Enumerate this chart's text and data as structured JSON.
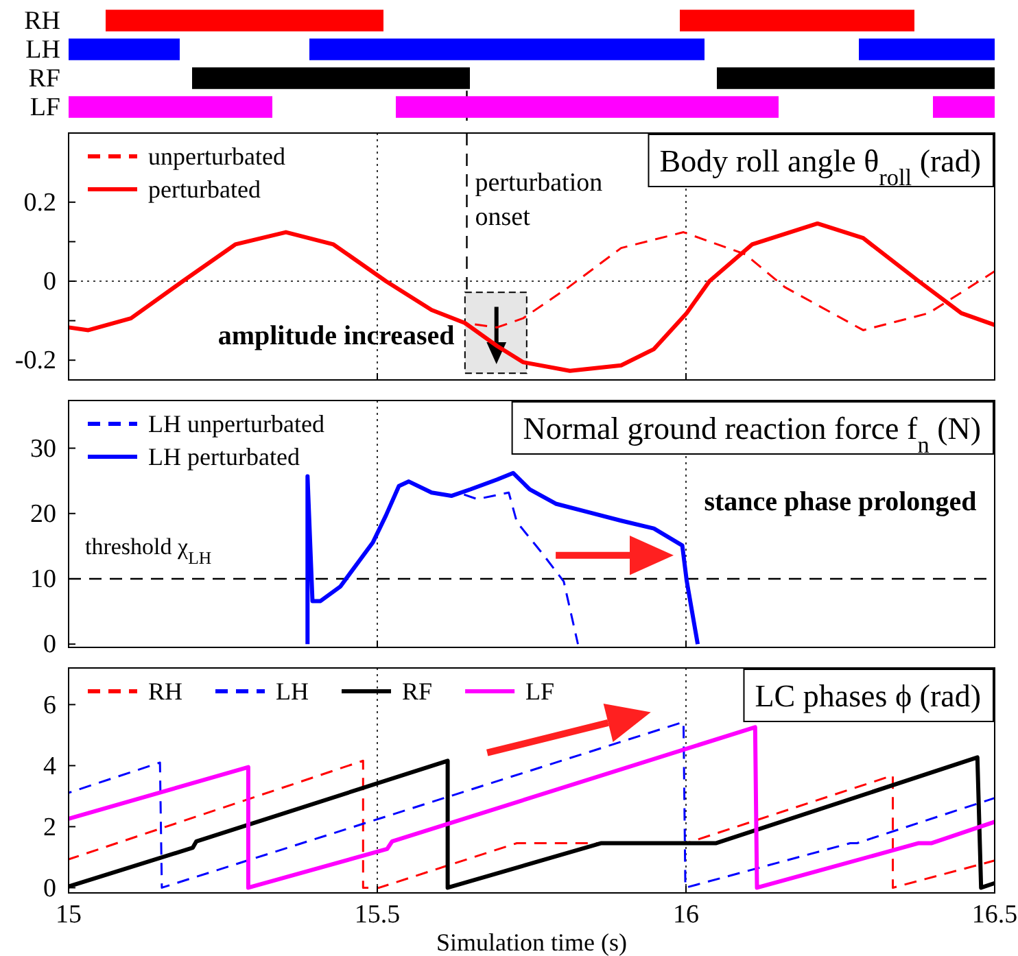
{
  "chart_data": [
    {
      "type": "bar",
      "orientation": "horizontal",
      "categories": [
        "RH",
        "LH",
        "RF",
        "LF"
      ],
      "xlim": [
        15,
        16.5
      ],
      "tick_labels": "y",
      "series": [
        {
          "colors": [
            "#ff0000",
            "#0000ff",
            "#000000",
            "#ff00ff"
          ],
          "base": [
            15.06,
            15,
            15.2,
            15
          ],
          "values": [
            0.45,
            0.18,
            0.45,
            0.33
          ]
        },
        {
          "colors": [
            "#ff0000",
            "#0000ff",
            "#000000",
            "#ff00ff"
          ],
          "base": [
            15.99,
            15.39,
            16.05,
            15.53
          ],
          "values": [
            0.38,
            0.64,
            0.45,
            0.62
          ]
        },
        {
          "colors": [
            null,
            "#0000ff",
            null,
            "#ff00ff"
          ],
          "base": [
            null,
            16.28,
            null,
            16.4
          ],
          "values": [
            null,
            0.22,
            null,
            0.1
          ]
        }
      ],
      "ref_lines": [
        {
          "axis": "x",
          "value": 15.645,
          "line_style": "dashed",
          "color": "#000000"
        }
      ]
    },
    {
      "type": "line",
      "title": "Body roll angle θ$_{roll}$ (rad)",
      "xlim": [
        15,
        16.5
      ],
      "xticks": [
        15,
        15.5,
        16,
        16.5
      ],
      "ylim": [
        -0.25,
        0.375
      ],
      "yticks": [
        -0.2,
        {
          "value": -0.1,
          "label": null
        },
        0,
        {
          "value": 0.1,
          "label": null
        },
        0.2
      ],
      "tick_labels": "y",
      "grid": "x",
      "legend": "top left",
      "series": [
        {
          "name": "unperturbated",
          "color": "#ff0000",
          "line_style": "dashed",
          "x": [
            15.642,
            15.694,
            15.736,
            15.81,
            15.895,
            15.996,
            16.096,
            16.16,
            16.287,
            16.393,
            16.5
          ],
          "values": [
            -0.106,
            -0.117,
            -0.094,
            -0.015,
            0.084,
            0.124,
            0.068,
            -0.015,
            -0.124,
            -0.081,
            0.025
          ]
        },
        {
          "name": "perturbated",
          "color": "#ff0000",
          "line_style": "solid",
          "x": [
            15,
            15.032,
            15.101,
            15.185,
            15.27,
            15.352,
            15.429,
            15.514,
            15.588,
            15.642,
            15.694,
            15.736,
            15.812,
            15.895,
            15.948,
            16.001,
            16.038,
            16.107,
            16.213,
            16.287,
            16.377,
            16.446,
            16.5
          ],
          "values": [
            -0.117,
            -0.124,
            -0.094,
            0,
            0.093,
            0.124,
            0.093,
            0,
            -0.073,
            -0.106,
            -0.164,
            -0.205,
            -0.227,
            -0.213,
            -0.172,
            -0.081,
            0,
            0.093,
            0.146,
            0.109,
            0,
            -0.081,
            -0.111
          ]
        }
      ],
      "ref_lines": [
        {
          "axis": "x",
          "value": 15.645,
          "label": "perturbation onset",
          "line_style": "dashed",
          "color": "#000000"
        },
        {
          "axis": "y",
          "value": 0,
          "line_style": "dotted",
          "color": "#000000"
        }
      ],
      "annotations": [
        "amplitude increased"
      ]
    },
    {
      "type": "line",
      "title": "Normal ground reaction force f$_{n}$ (N)",
      "xlim": [
        15,
        16.5
      ],
      "xticks": [
        15,
        15.5,
        16,
        16.5
      ],
      "ylim": [
        -0.5,
        37.3
      ],
      "yticks": [
        0,
        10,
        20,
        30
      ],
      "tick_labels": "y",
      "grid": "x",
      "legend": "top left",
      "series": [
        {
          "name": "LH unperturbated",
          "color": "#0000ff",
          "line_style": "dashed",
          "x": [
            15.631,
            15.662,
            15.713,
            15.726,
            15.768,
            15.802,
            15.825
          ],
          "values": [
            23.2,
            22.2,
            23.2,
            18.7,
            13.8,
            9.6,
            0
          ]
        },
        {
          "name": "LH perturbated",
          "color": "#0000ff",
          "line_style": "solid",
          "x": [
            15.387,
            15.387,
            15.395,
            15.408,
            15.44,
            15.493,
            15.514,
            15.535,
            15.551,
            15.588,
            15.62,
            15.651,
            15.694,
            15.72,
            15.747,
            15.789,
            15.842,
            15.895,
            15.948,
            15.994,
            16.001,
            16.019
          ],
          "values": [
            0,
            25.7,
            6.6,
            6.6,
            8.8,
            15.6,
            19.7,
            24.2,
            24.9,
            23.2,
            22.7,
            23.7,
            25.2,
            26.2,
            23.7,
            21.5,
            20.2,
            18.9,
            17.7,
            15.1,
            9.8,
            0
          ]
        }
      ],
      "ref_lines": [
        {
          "axis": "y",
          "value": 10,
          "label": "threshold χ$_{LH}$",
          "line_style": "dashed",
          "color": "#000000"
        }
      ],
      "annotations": [
        "stance phase prolonged"
      ]
    },
    {
      "type": "line",
      "title": "LC phases ϕ (rad)",
      "xlabel": "Simulation time (s)",
      "xlim": [
        15,
        16.5
      ],
      "xticks": [
        15,
        15.5,
        16,
        16.5
      ],
      "ylim": [
        -0.17,
        7.2
      ],
      "yticks": [
        0,
        2,
        4,
        6
      ],
      "grid": "x",
      "legend": "top left",
      "series": [
        {
          "name": "RH",
          "color": "#ff0000",
          "line_style": "dashed",
          "x": [
            15,
            15.477,
            15.477,
            15.503,
            15.726,
            16.001,
            16.335,
            16.335,
            16.5
          ],
          "values": [
            0.93,
            4.16,
            0,
            0,
            1.46,
            1.46,
            3.68,
            0,
            0.89
          ]
        },
        {
          "name": "LH",
          "color": "#0000ff",
          "line_style": "dashed",
          "x": [
            15,
            15.148,
            15.151,
            15.996,
            15.999,
            16.266,
            16.277,
            16.5
          ],
          "values": [
            3.11,
            4.1,
            0,
            5.43,
            0,
            1.46,
            1.46,
            2.94
          ]
        },
        {
          "name": "RF",
          "color": "#000000",
          "line_style": "solid",
          "x": [
            15,
            15.201,
            15.207,
            15.614,
            15.614,
            15.863,
            16.049,
            16.472,
            16.478,
            16.5
          ],
          "values": [
            0.04,
            1.31,
            1.52,
            4.16,
            0,
            1.46,
            1.46,
            4.27,
            0,
            0.15
          ]
        },
        {
          "name": "LF",
          "color": "#ff00ff",
          "line_style": "solid",
          "x": [
            15,
            15.291,
            15.291,
            15.516,
            15.524,
            16.112,
            16.115,
            16.377,
            16.398,
            16.5
          ],
          "values": [
            2.26,
            3.95,
            0,
            1.27,
            1.52,
            5.26,
            0,
            1.46,
            1.46,
            2.16
          ]
        }
      ]
    }
  ]
}
